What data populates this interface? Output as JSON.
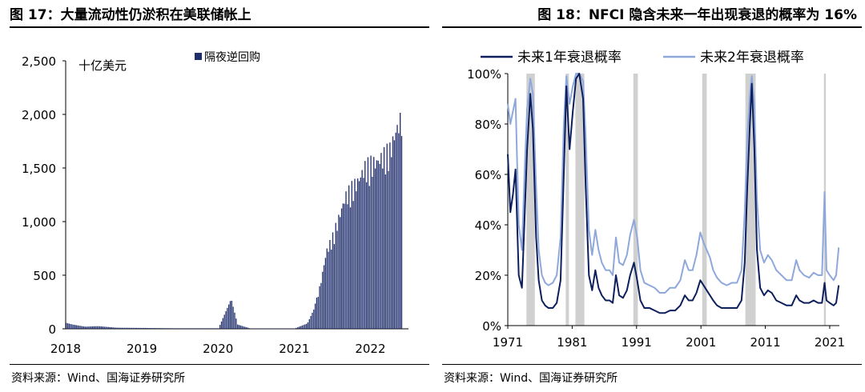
{
  "figures": [
    {
      "title": "图 17：大量流动性仍淤积在美联储帐上",
      "source": "资料来源：Wind、国海证券研究所"
    },
    {
      "title": "图 18：NFCI 隐含未来一年出现衰退的概率为 16%",
      "source": "资料来源：Wind、国海证券研究所"
    }
  ],
  "chart_data": [
    {
      "type": "bar",
      "title": "",
      "unit_label": "十亿美元",
      "xlabel": "",
      "ylabel": "",
      "ylim": [
        0,
        2500
      ],
      "y_ticks": [
        "0",
        "500",
        "1,000",
        "1,500",
        "2,000",
        "2,500"
      ],
      "x_ticks": [
        "2018",
        "2019",
        "2020",
        "2021",
        "2022"
      ],
      "legend": "top-center",
      "series": [
        {
          "name": "隔夜逆回购",
          "color": "#1f2d6b",
          "points": [
            [
              "2018-01",
              55
            ],
            [
              "2018-02",
              40
            ],
            [
              "2018-04",
              20
            ],
            [
              "2018-06",
              25
            ],
            [
              "2018-09",
              10
            ],
            [
              "2019-01",
              8
            ],
            [
              "2019-06",
              5
            ],
            [
              "2020-01",
              5
            ],
            [
              "2020-03",
              280
            ],
            [
              "2020-04",
              40
            ],
            [
              "2020-06",
              3
            ],
            [
              "2021-01",
              3
            ],
            [
              "2021-03",
              50
            ],
            [
              "2021-04",
              180
            ],
            [
              "2021-05",
              420
            ],
            [
              "2021-06",
              760
            ],
            [
              "2021-07",
              900
            ],
            [
              "2021-08",
              1100
            ],
            [
              "2021-09",
              1300
            ],
            [
              "2021-10",
              1380
            ],
            [
              "2021-11",
              1450
            ],
            [
              "2021-12",
              1580
            ],
            [
              "2022-01",
              1620
            ],
            [
              "2022-02",
              1640
            ],
            [
              "2022-03",
              1700
            ],
            [
              "2022-04",
              1750
            ],
            [
              "2022-05",
              1950
            ],
            [
              "2022-06",
              2100
            ]
          ]
        }
      ],
      "grid": false
    },
    {
      "type": "line",
      "title": "",
      "xlabel": "",
      "ylabel": "",
      "ylim": [
        0,
        100
      ],
      "y_ticks": [
        "0%",
        "20%",
        "40%",
        "60%",
        "80%",
        "100%"
      ],
      "x_ticks": [
        "1971",
        "1981",
        "1991",
        "2001",
        "2011",
        "2021"
      ],
      "xlim": [
        1971,
        2022.5
      ],
      "legend": "top",
      "recession_shading": [
        [
          1973.9,
          1975.2
        ],
        [
          1980.0,
          1980.5
        ],
        [
          1981.5,
          1982.9
        ],
        [
          1990.5,
          1991.2
        ],
        [
          2001.2,
          2001.9
        ],
        [
          2007.9,
          2009.5
        ],
        [
          2020.1,
          2020.4
        ]
      ],
      "series": [
        {
          "name": "未来1年衰退概率",
          "color": "#0d1f5c",
          "points": [
            [
              1971.0,
              68
            ],
            [
              1971.4,
              45
            ],
            [
              1971.8,
              52
            ],
            [
              1972.2,
              62
            ],
            [
              1972.7,
              20
            ],
            [
              1973.2,
              15
            ],
            [
              1973.6,
              42
            ],
            [
              1974.0,
              70
            ],
            [
              1974.5,
              92
            ],
            [
              1974.9,
              78
            ],
            [
              1975.4,
              35
            ],
            [
              1975.8,
              18
            ],
            [
              1976.3,
              10
            ],
            [
              1976.8,
              8
            ],
            [
              1977.3,
              7
            ],
            [
              1978.0,
              7
            ],
            [
              1978.6,
              9
            ],
            [
              1979.2,
              18
            ],
            [
              1979.7,
              60
            ],
            [
              1980.1,
              95
            ],
            [
              1980.6,
              70
            ],
            [
              1981.1,
              85
            ],
            [
              1981.6,
              98
            ],
            [
              1982.1,
              100
            ],
            [
              1982.7,
              90
            ],
            [
              1983.1,
              55
            ],
            [
              1983.6,
              20
            ],
            [
              1984.1,
              14
            ],
            [
              1984.6,
              22
            ],
            [
              1985.1,
              15
            ],
            [
              1985.6,
              12
            ],
            [
              1986.2,
              10
            ],
            [
              1986.8,
              10
            ],
            [
              1987.3,
              9
            ],
            [
              1987.8,
              20
            ],
            [
              1988.3,
              12
            ],
            [
              1988.9,
              11
            ],
            [
              1989.5,
              14
            ],
            [
              1990.0,
              20
            ],
            [
              1990.6,
              25
            ],
            [
              1991.1,
              18
            ],
            [
              1991.6,
              10
            ],
            [
              1992.2,
              7
            ],
            [
              1993.0,
              7
            ],
            [
              1993.8,
              6
            ],
            [
              1994.6,
              5
            ],
            [
              1995.4,
              5
            ],
            [
              1996.2,
              6
            ],
            [
              1997.0,
              6
            ],
            [
              1997.8,
              8
            ],
            [
              1998.5,
              12
            ],
            [
              1999.1,
              10
            ],
            [
              1999.7,
              10
            ],
            [
              2000.3,
              13
            ],
            [
              2000.9,
              18
            ],
            [
              2001.4,
              16
            ],
            [
              2001.9,
              14
            ],
            [
              2002.4,
              12
            ],
            [
              2002.9,
              10
            ],
            [
              2003.5,
              8
            ],
            [
              2004.2,
              7
            ],
            [
              2005.0,
              7
            ],
            [
              2005.8,
              7
            ],
            [
              2006.6,
              7
            ],
            [
              2007.3,
              10
            ],
            [
              2007.8,
              25
            ],
            [
              2008.2,
              55
            ],
            [
              2008.6,
              80
            ],
            [
              2008.9,
              96
            ],
            [
              2009.3,
              70
            ],
            [
              2009.7,
              30
            ],
            [
              2010.2,
              15
            ],
            [
              2010.8,
              12
            ],
            [
              2011.4,
              14
            ],
            [
              2012.0,
              13
            ],
            [
              2012.7,
              10
            ],
            [
              2013.5,
              9
            ],
            [
              2014.3,
              8
            ],
            [
              2015.1,
              8
            ],
            [
              2015.8,
              12
            ],
            [
              2016.3,
              10
            ],
            [
              2017.0,
              9
            ],
            [
              2017.8,
              9
            ],
            [
              2018.5,
              10
            ],
            [
              2019.2,
              9
            ],
            [
              2019.8,
              9
            ],
            [
              2020.2,
              17
            ],
            [
              2020.5,
              10
            ],
            [
              2021.0,
              9
            ],
            [
              2021.6,
              8
            ],
            [
              2022.0,
              9
            ],
            [
              2022.4,
              16
            ]
          ]
        },
        {
          "name": "未来2年衰退概率",
          "color": "#8fa8dc",
          "points": [
            [
              1971.0,
              88
            ],
            [
              1971.4,
              80
            ],
            [
              1971.8,
              85
            ],
            [
              1972.2,
              90
            ],
            [
              1972.7,
              40
            ],
            [
              1973.2,
              30
            ],
            [
              1973.6,
              60
            ],
            [
              1974.0,
              86
            ],
            [
              1974.5,
              98
            ],
            [
              1974.9,
              92
            ],
            [
              1975.4,
              55
            ],
            [
              1975.8,
              30
            ],
            [
              1976.3,
              20
            ],
            [
              1976.8,
              17
            ],
            [
              1977.3,
              16
            ],
            [
              1978.0,
              17
            ],
            [
              1978.6,
              20
            ],
            [
              1979.2,
              35
            ],
            [
              1979.7,
              80
            ],
            [
              1980.1,
              99
            ],
            [
              1980.6,
              88
            ],
            [
              1981.1,
              95
            ],
            [
              1981.6,
              100
            ],
            [
              1982.1,
              100
            ],
            [
              1982.7,
              97
            ],
            [
              1983.1,
              75
            ],
            [
              1983.6,
              38
            ],
            [
              1984.1,
              28
            ],
            [
              1984.6,
              38
            ],
            [
              1985.1,
              30
            ],
            [
              1985.6,
              25
            ],
            [
              1986.2,
              22
            ],
            [
              1986.8,
              22
            ],
            [
              1987.3,
              20
            ],
            [
              1987.8,
              35
            ],
            [
              1988.3,
              25
            ],
            [
              1988.9,
              24
            ],
            [
              1989.5,
              28
            ],
            [
              1990.0,
              36
            ],
            [
              1990.6,
              42
            ],
            [
              1991.1,
              35
            ],
            [
              1991.6,
              22
            ],
            [
              1992.2,
              17
            ],
            [
              1993.0,
              16
            ],
            [
              1993.8,
              15
            ],
            [
              1994.6,
              13
            ],
            [
              1995.4,
              13
            ],
            [
              1996.2,
              15
            ],
            [
              1997.0,
              15
            ],
            [
              1997.8,
              18
            ],
            [
              1998.5,
              26
            ],
            [
              1999.1,
              22
            ],
            [
              1999.7,
              22
            ],
            [
              2000.3,
              28
            ],
            [
              2000.9,
              37
            ],
            [
              2001.4,
              33
            ],
            [
              2001.9,
              30
            ],
            [
              2002.4,
              27
            ],
            [
              2002.9,
              22
            ],
            [
              2003.5,
              19
            ],
            [
              2004.2,
              17
            ],
            [
              2005.0,
              16
            ],
            [
              2005.8,
              17
            ],
            [
              2006.6,
              17
            ],
            [
              2007.3,
              22
            ],
            [
              2007.8,
              45
            ],
            [
              2008.2,
              75
            ],
            [
              2008.6,
              92
            ],
            [
              2008.9,
              99
            ],
            [
              2009.3,
              88
            ],
            [
              2009.7,
              50
            ],
            [
              2010.2,
              30
            ],
            [
              2010.8,
              25
            ],
            [
              2011.4,
              28
            ],
            [
              2012.0,
              26
            ],
            [
              2012.7,
              22
            ],
            [
              2013.5,
              20
            ],
            [
              2014.3,
              18
            ],
            [
              2015.1,
              18
            ],
            [
              2015.8,
              26
            ],
            [
              2016.3,
              22
            ],
            [
              2017.0,
              20
            ],
            [
              2017.8,
              19
            ],
            [
              2018.5,
              21
            ],
            [
              2019.2,
              20
            ],
            [
              2019.8,
              20
            ],
            [
              2020.2,
              53
            ],
            [
              2020.5,
              22
            ],
            [
              2021.0,
              20
            ],
            [
              2021.6,
              18
            ],
            [
              2022.0,
              20
            ],
            [
              2022.4,
              31
            ]
          ]
        }
      ],
      "grid": false
    }
  ]
}
